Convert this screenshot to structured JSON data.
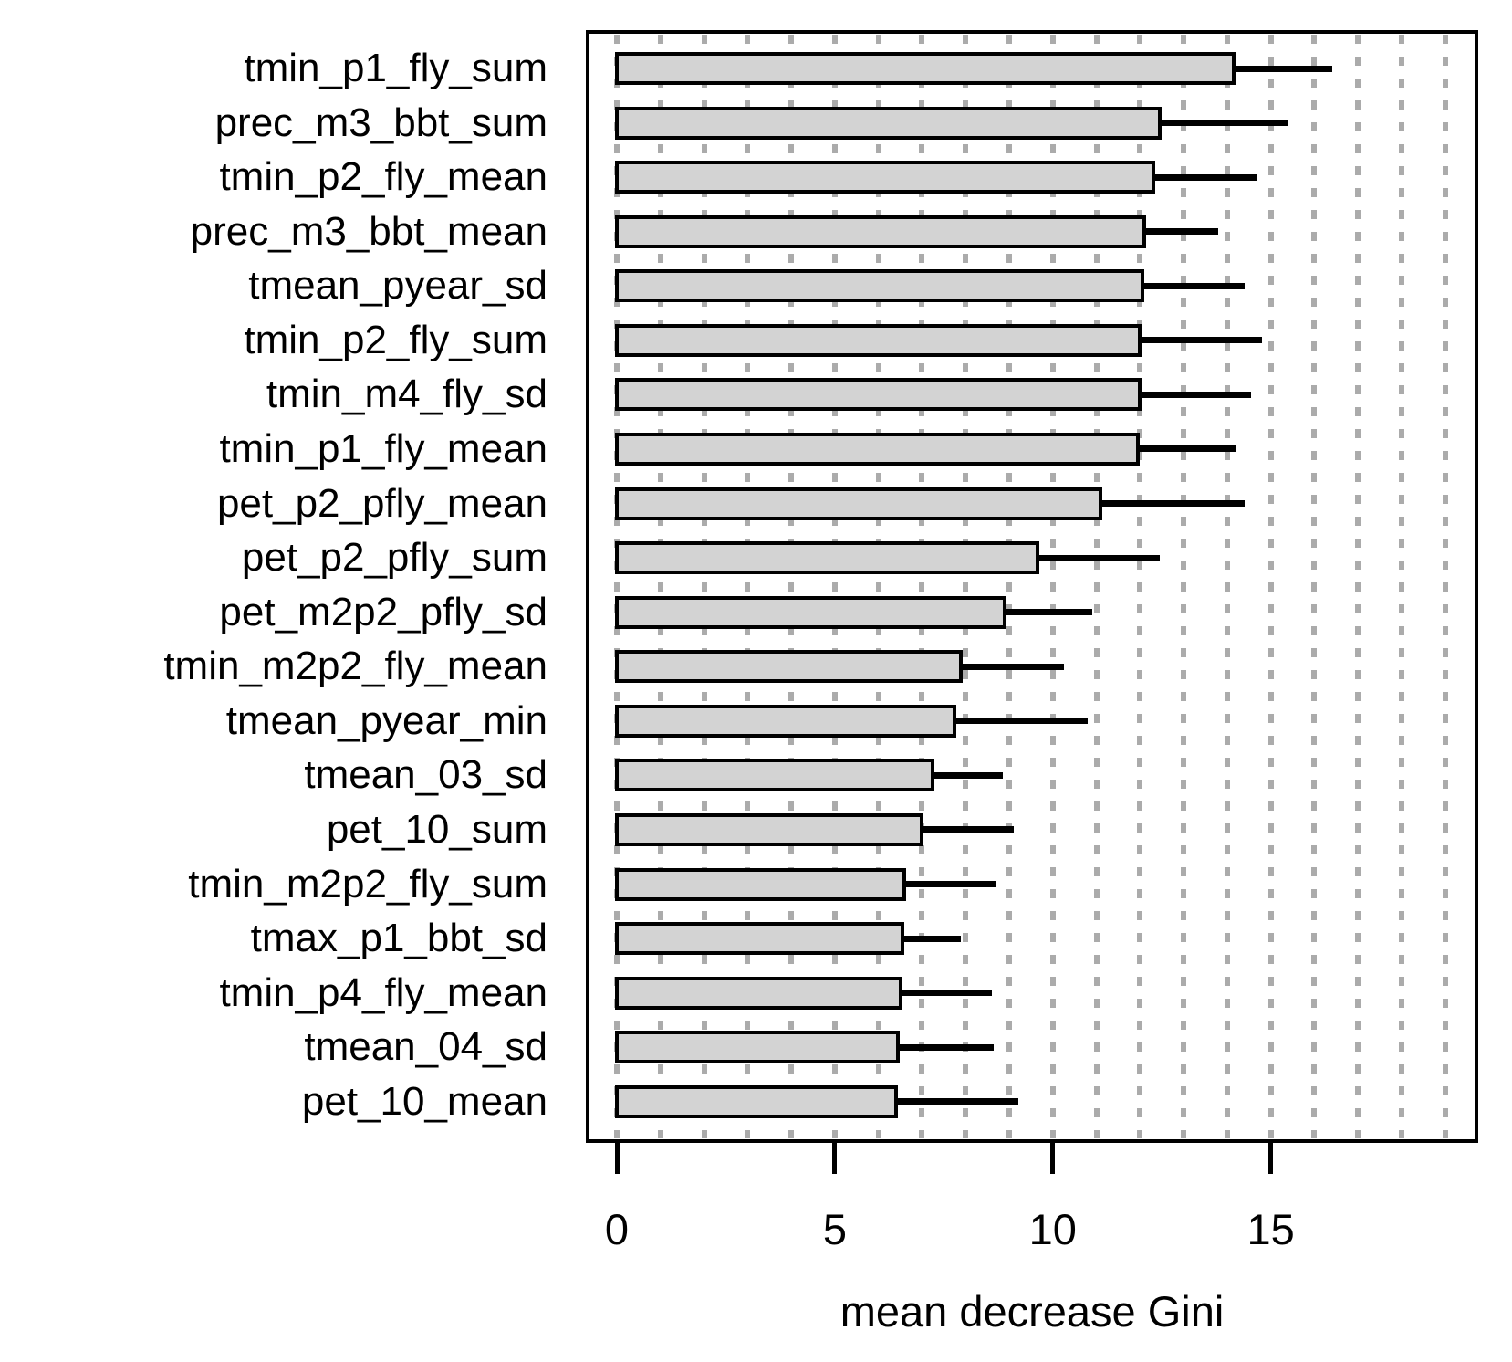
{
  "chart_data": {
    "type": "bar",
    "orientation": "horizontal",
    "title": "",
    "xlabel": "mean decrease Gini",
    "ylabel": "",
    "xlim": [
      0,
      19
    ],
    "x_ticks": [
      0,
      5,
      10,
      15
    ],
    "x_tick_labels": [
      "0",
      "5",
      "10",
      "15"
    ],
    "grid": "vertical dashed gridlines at every 1 unit from 0 to 19",
    "legend_position": "none",
    "categories": [
      "tmin_p1_fly_sum",
      "prec_m3_bbt_sum",
      "tmin_p2_fly_mean",
      "prec_m3_bbt_mean",
      "tmean_pyear_sd",
      "tmin_p2_fly_sum",
      "tmin_m4_fly_sd",
      "tmin_p1_fly_mean",
      "pet_p2_pfly_mean",
      "pet_p2_pfly_sum",
      "pet_m2p2_pfly_sd",
      "tmin_m2p2_fly_mean",
      "tmean_pyear_min",
      "tmean_03_sd",
      "pet_10_sum",
      "tmin_m2p2_fly_sum",
      "tmax_p1_bbt_sd",
      "tmin_p4_fly_mean",
      "tmean_04_sd",
      "pet_10_mean"
    ],
    "series": [
      {
        "name": "mean decrease Gini",
        "values": [
          14.15,
          12.45,
          12.3,
          12.1,
          12.05,
          12.0,
          12.0,
          11.95,
          11.1,
          9.65,
          8.9,
          7.9,
          7.75,
          7.25,
          7.0,
          6.6,
          6.55,
          6.5,
          6.45,
          6.4
        ]
      },
      {
        "name": "upper whisker (sd)",
        "values": [
          16.4,
          15.4,
          14.7,
          13.8,
          14.4,
          14.8,
          14.55,
          14.2,
          14.4,
          12.45,
          10.9,
          10.25,
          10.8,
          8.85,
          9.1,
          8.7,
          7.9,
          8.6,
          8.65,
          9.2
        ]
      }
    ]
  },
  "colors": {
    "background": "#ffffff",
    "bar_fill": "#d3d3d3",
    "bar_border": "#000000",
    "whisker": "#000000",
    "gridline": "#ababab",
    "axis": "#000000",
    "text": "#000000"
  }
}
